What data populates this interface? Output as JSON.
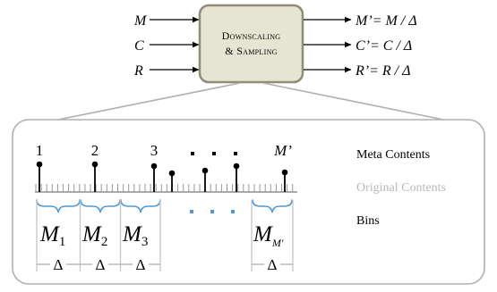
{
  "inputs": [
    "M",
    "C",
    "R"
  ],
  "process_box": {
    "line1": "Downscaling",
    "line2": "& Sampling"
  },
  "outputs": [
    {
      "lhs": "M’",
      "rhs": "= M / Δ"
    },
    {
      "lhs": "C’",
      "rhs": "= C / Δ"
    },
    {
      "lhs": "R’",
      "rhs": "= R / Δ"
    }
  ],
  "timeline": {
    "meta_labels": [
      "1",
      "2",
      "3",
      "M’"
    ],
    "bins": [
      {
        "letter": "M",
        "subscript": "1"
      },
      {
        "letter": "M",
        "subscript": "2"
      },
      {
        "letter": "M",
        "subscript": "3"
      },
      {
        "letter": "M",
        "subscript": "M′"
      }
    ],
    "delta_symbol": "Δ"
  },
  "legend": {
    "meta": "Meta Contents",
    "original": "Original Contents",
    "bins": "Bins"
  },
  "colors": {
    "box_fill": "#e6e4d2",
    "box_stroke": "#8f8c78",
    "panel_stroke": "#b0b0b0",
    "brace": "#4f9ad4",
    "dots_blue": "#4f9ad4",
    "axis": "#777777",
    "original_label": "#b8b8b8"
  }
}
